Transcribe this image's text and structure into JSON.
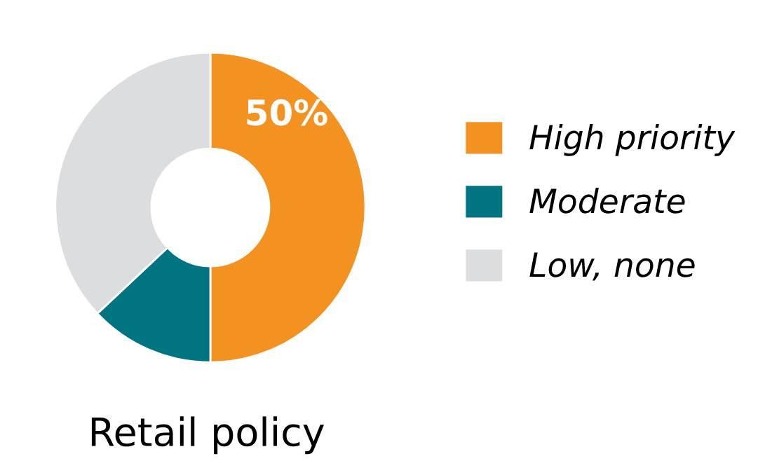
{
  "chart_data": {
    "type": "donut",
    "title": "Retail policy",
    "categories": [
      "High priority",
      "Moderate",
      "Low, none"
    ],
    "values": [
      50,
      13,
      37
    ],
    "colors": [
      "#f39121",
      "#007480",
      "#dcdddf"
    ],
    "value_labels": [
      "50%",
      null,
      null
    ],
    "legend": "right"
  }
}
